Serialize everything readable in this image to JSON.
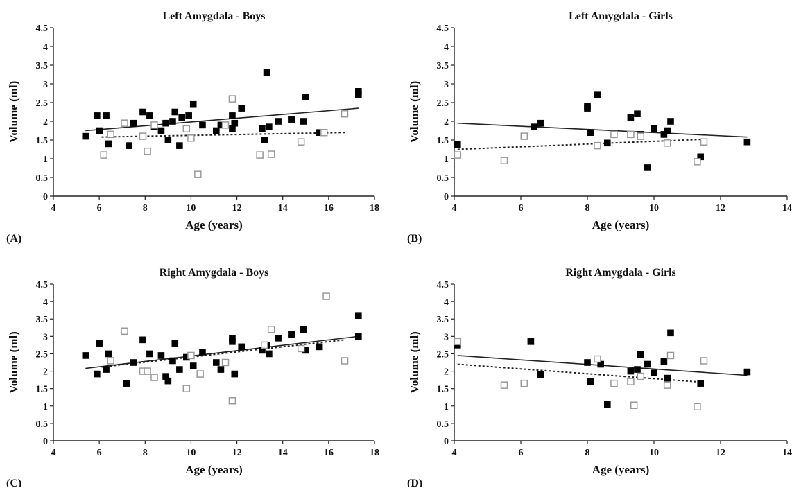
{
  "chart_data": [
    {
      "panel_label": "(A)",
      "type": "scatter",
      "title": "Left Amygdala - Boys",
      "xlabel": "Age (years)",
      "ylabel": "Volume (ml)",
      "xlim": [
        4,
        18
      ],
      "ylim": [
        0,
        4.5
      ],
      "xticks": [
        "4",
        "6",
        "8",
        "10",
        "12",
        "14",
        "16",
        "18"
      ],
      "yticks": [
        "0",
        "0.5",
        "1",
        "1.5",
        "2",
        "2.5",
        "3",
        "3.5",
        "4",
        "4.5"
      ],
      "grid": false,
      "legend": "none",
      "series": [
        {
          "marker": "filled-square",
          "color": "#000000",
          "points": [
            [
              5.4,
              1.6
            ],
            [
              5.9,
              2.15
            ],
            [
              6.0,
              1.75
            ],
            [
              6.3,
              2.15
            ],
            [
              6.4,
              1.4
            ],
            [
              7.3,
              1.35
            ],
            [
              7.5,
              1.95
            ],
            [
              7.9,
              2.25
            ],
            [
              8.2,
              2.15
            ],
            [
              8.4,
              1.85
            ],
            [
              8.7,
              1.75
            ],
            [
              8.9,
              1.95
            ],
            [
              9.0,
              1.5
            ],
            [
              9.2,
              2.0
            ],
            [
              9.3,
              2.25
            ],
            [
              9.5,
              1.35
            ],
            [
              9.6,
              2.1
            ],
            [
              9.9,
              2.15
            ],
            [
              10.1,
              2.45
            ],
            [
              10.5,
              1.9
            ],
            [
              11.1,
              1.75
            ],
            [
              11.3,
              1.9
            ],
            [
              11.8,
              1.8
            ],
            [
              11.8,
              2.15
            ],
            [
              11.9,
              1.95
            ],
            [
              12.2,
              2.35
            ],
            [
              13.1,
              1.8
            ],
            [
              13.2,
              1.5
            ],
            [
              13.3,
              3.3
            ],
            [
              13.4,
              1.85
            ],
            [
              13.8,
              2.0
            ],
            [
              14.4,
              2.05
            ],
            [
              14.9,
              2.0
            ],
            [
              15.0,
              2.65
            ],
            [
              15.6,
              1.7
            ],
            [
              17.3,
              2.8
            ],
            [
              17.3,
              2.7
            ]
          ]
        },
        {
          "marker": "open-square",
          "color": "#999999",
          "points": [
            [
              6.2,
              1.1
            ],
            [
              6.5,
              1.65
            ],
            [
              7.1,
              1.95
            ],
            [
              7.9,
              1.6
            ],
            [
              8.1,
              1.2
            ],
            [
              8.4,
              1.9
            ],
            [
              9.8,
              1.8
            ],
            [
              10.0,
              1.55
            ],
            [
              10.3,
              0.58
            ],
            [
              11.5,
              1.9
            ],
            [
              11.8,
              2.6
            ],
            [
              13.0,
              1.1
            ],
            [
              13.5,
              1.12
            ],
            [
              14.8,
              1.45
            ],
            [
              15.8,
              1.7
            ],
            [
              16.7,
              2.2
            ]
          ]
        }
      ],
      "trendlines": [
        {
          "style": "solid",
          "color": "#222222",
          "x": [
            5.4,
            17.3
          ],
          "y": [
            1.75,
            2.35
          ]
        },
        {
          "style": "dotted",
          "color": "#222222",
          "x": [
            6.1,
            16.7
          ],
          "y": [
            1.58,
            1.7
          ]
        }
      ]
    },
    {
      "panel_label": "(B)",
      "type": "scatter",
      "title": "Left Amygdala - Girls",
      "xlabel": "Age (years)",
      "ylabel": "Volume (ml)",
      "xlim": [
        4,
        14
      ],
      "ylim": [
        0,
        4.5
      ],
      "xticks": [
        "4",
        "6",
        "8",
        "10",
        "12",
        "14"
      ],
      "yticks": [
        "0",
        "0.5",
        "1",
        "1.5",
        "2",
        "2.5",
        "3",
        "3.5",
        "4",
        "4.5"
      ],
      "grid": false,
      "legend": "none",
      "series": [
        {
          "marker": "filled-square",
          "color": "#000000",
          "points": [
            [
              4.1,
              1.38
            ],
            [
              6.4,
              1.85
            ],
            [
              6.6,
              1.95
            ],
            [
              8.0,
              2.35
            ],
            [
              8.0,
              2.4
            ],
            [
              8.1,
              1.7
            ],
            [
              8.3,
              2.7
            ],
            [
              8.6,
              1.42
            ],
            [
              9.3,
              2.1
            ],
            [
              9.5,
              2.2
            ],
            [
              9.6,
              1.65
            ],
            [
              9.8,
              0.76
            ],
            [
              10.0,
              1.8
            ],
            [
              10.3,
              1.65
            ],
            [
              10.4,
              1.75
            ],
            [
              10.5,
              2.0
            ],
            [
              11.4,
              1.05
            ],
            [
              12.8,
              1.45
            ]
          ]
        },
        {
          "marker": "open-square",
          "color": "#999999",
          "points": [
            [
              4.1,
              1.1
            ],
            [
              5.5,
              0.95
            ],
            [
              6.1,
              1.6
            ],
            [
              8.3,
              1.35
            ],
            [
              8.8,
              1.65
            ],
            [
              9.3,
              1.65
            ],
            [
              9.6,
              1.6
            ],
            [
              10.4,
              1.42
            ],
            [
              11.3,
              0.92
            ],
            [
              11.5,
              1.45
            ]
          ]
        }
      ],
      "trendlines": [
        {
          "style": "solid",
          "color": "#222222",
          "x": [
            4.1,
            12.8
          ],
          "y": [
            1.95,
            1.58
          ]
        },
        {
          "style": "dotted",
          "color": "#222222",
          "x": [
            4.1,
            11.5
          ],
          "y": [
            1.25,
            1.52
          ]
        }
      ]
    },
    {
      "panel_label": "(C)",
      "type": "scatter",
      "title": "Right Amygdala - Boys",
      "xlabel": "Age (years)",
      "ylabel": "Volume (ml)",
      "xlim": [
        4,
        18
      ],
      "ylim": [
        0,
        4.5
      ],
      "xticks": [
        "4",
        "6",
        "8",
        "10",
        "12",
        "14",
        "16",
        "18"
      ],
      "yticks": [
        "0",
        "0.5",
        "1",
        "1.5",
        "2",
        "2.5",
        "3",
        "3.5",
        "4",
        "4.5"
      ],
      "grid": false,
      "legend": "none",
      "series": [
        {
          "marker": "filled-square",
          "color": "#000000",
          "points": [
            [
              5.4,
              2.45
            ],
            [
              5.9,
              1.92
            ],
            [
              6.0,
              2.8
            ],
            [
              6.3,
              2.05
            ],
            [
              6.4,
              2.5
            ],
            [
              7.2,
              1.65
            ],
            [
              7.5,
              2.25
            ],
            [
              7.9,
              2.9
            ],
            [
              8.2,
              2.5
            ],
            [
              8.7,
              2.45
            ],
            [
              8.9,
              1.85
            ],
            [
              9.0,
              1.72
            ],
            [
              9.2,
              2.3
            ],
            [
              9.3,
              2.8
            ],
            [
              9.5,
              2.05
            ],
            [
              9.8,
              2.4
            ],
            [
              10.1,
              2.15
            ],
            [
              10.5,
              2.55
            ],
            [
              11.1,
              2.25
            ],
            [
              11.3,
              2.05
            ],
            [
              11.8,
              2.95
            ],
            [
              11.8,
              2.85
            ],
            [
              11.9,
              1.92
            ],
            [
              12.2,
              2.7
            ],
            [
              13.1,
              2.6
            ],
            [
              13.3,
              2.75
            ],
            [
              13.4,
              2.5
            ],
            [
              13.8,
              2.95
            ],
            [
              14.4,
              3.05
            ],
            [
              14.9,
              3.2
            ],
            [
              15.0,
              2.6
            ],
            [
              15.6,
              2.7
            ],
            [
              17.3,
              3.6
            ],
            [
              17.3,
              3.0
            ]
          ]
        },
        {
          "marker": "open-square",
          "color": "#999999",
          "points": [
            [
              6.5,
              2.3
            ],
            [
              7.1,
              3.15
            ],
            [
              7.9,
              2.0
            ],
            [
              8.1,
              2.0
            ],
            [
              8.4,
              1.82
            ],
            [
              9.8,
              1.5
            ],
            [
              10.0,
              2.45
            ],
            [
              10.4,
              1.92
            ],
            [
              11.5,
              2.25
            ],
            [
              11.8,
              1.15
            ],
            [
              13.5,
              3.2
            ],
            [
              13.2,
              2.75
            ],
            [
              14.8,
              2.65
            ],
            [
              15.9,
              4.15
            ],
            [
              16.7,
              2.3
            ]
          ]
        }
      ],
      "trendlines": [
        {
          "style": "solid",
          "color": "#222222",
          "x": [
            5.4,
            17.3
          ],
          "y": [
            2.08,
            3.0
          ]
        },
        {
          "style": "dotted",
          "color": "#222222",
          "x": [
            6.1,
            16.7
          ],
          "y": [
            2.12,
            2.9
          ]
        }
      ]
    },
    {
      "panel_label": "(D)",
      "type": "scatter",
      "title": "Right Amygdala - Girls",
      "xlabel": "Age (years)",
      "ylabel": "Volume (ml)",
      "xlim": [
        4,
        14
      ],
      "ylim": [
        0,
        4.5
      ],
      "xticks": [
        "4",
        "6",
        "8",
        "10",
        "12",
        "14"
      ],
      "yticks": [
        "0",
        "0.5",
        "1",
        "1.5",
        "2",
        "2.5",
        "3",
        "3.5",
        "4",
        "4.5"
      ],
      "grid": false,
      "legend": "none",
      "series": [
        {
          "marker": "filled-square",
          "color": "#000000",
          "points": [
            [
              4.1,
              2.75
            ],
            [
              6.3,
              2.85
            ],
            [
              6.6,
              1.9
            ],
            [
              8.0,
              2.25
            ],
            [
              8.1,
              1.7
            ],
            [
              8.4,
              2.2
            ],
            [
              8.6,
              1.05
            ],
            [
              9.3,
              2.0
            ],
            [
              9.5,
              2.05
            ],
            [
              9.6,
              2.48
            ],
            [
              9.8,
              2.2
            ],
            [
              10.0,
              1.95
            ],
            [
              10.3,
              2.28
            ],
            [
              10.4,
              1.8
            ],
            [
              10.5,
              3.1
            ],
            [
              11.4,
              1.65
            ],
            [
              12.8,
              1.98
            ]
          ]
        },
        {
          "marker": "open-square",
          "color": "#999999",
          "points": [
            [
              4.1,
              2.85
            ],
            [
              5.5,
              1.6
            ],
            [
              6.1,
              1.65
            ],
            [
              8.3,
              2.35
            ],
            [
              8.8,
              1.65
            ],
            [
              9.3,
              1.7
            ],
            [
              9.4,
              1.02
            ],
            [
              9.6,
              1.85
            ],
            [
              10.4,
              1.6
            ],
            [
              10.5,
              2.45
            ],
            [
              11.3,
              0.98
            ],
            [
              11.5,
              2.3
            ]
          ]
        }
      ],
      "trendlines": [
        {
          "style": "solid",
          "color": "#222222",
          "x": [
            4.1,
            12.8
          ],
          "y": [
            2.45,
            1.88
          ]
        },
        {
          "style": "dotted",
          "color": "#222222",
          "x": [
            4.1,
            11.5
          ],
          "y": [
            2.2,
            1.68
          ]
        }
      ]
    }
  ]
}
